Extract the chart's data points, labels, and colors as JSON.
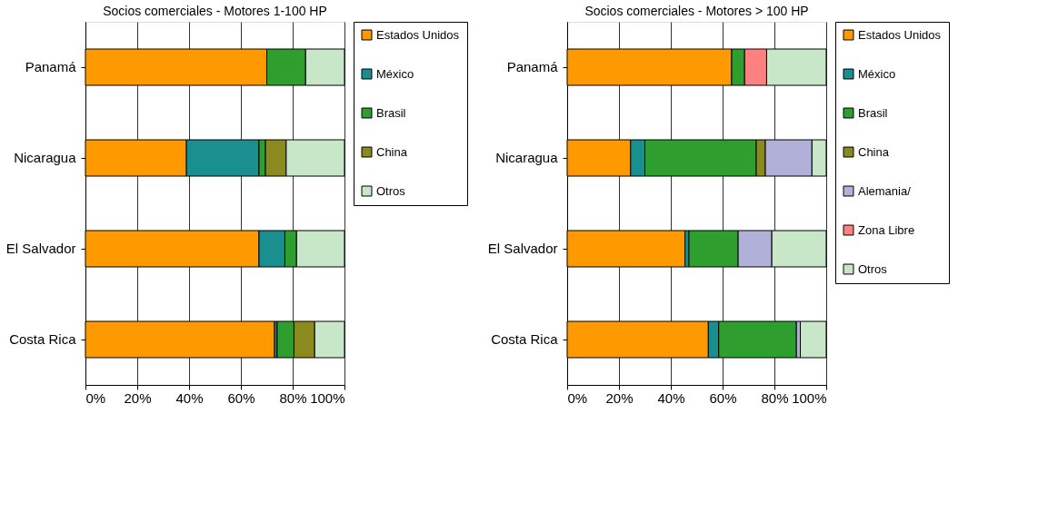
{
  "chart_data": [
    {
      "type": "bar",
      "orientation": "horizontal",
      "stacked": true,
      "title": "Socios comerciales - Motores 1-100 HP",
      "categories": [
        "Panamá",
        "Nicaragua",
        "El Salvador",
        "Costa Rica"
      ],
      "series": [
        {
          "name": "Estados Unidos",
          "color": "#ff9900",
          "values": [
            70,
            39,
            67,
            73
          ]
        },
        {
          "name": "México",
          "color": "#1a8f8f",
          "values": [
            0,
            28,
            10,
            1
          ]
        },
        {
          "name": "Brasil",
          "color": "#2e9e2e",
          "values": [
            15,
            2.5,
            4.5,
            6.5
          ]
        },
        {
          "name": "China",
          "color": "#8a8a1e",
          "values": [
            0,
            8,
            0,
            8
          ]
        },
        {
          "name": "Otros",
          "color": "#c8e6c8",
          "values": [
            15,
            22.5,
            18.5,
            11.5
          ]
        }
      ],
      "xlim": [
        0,
        100
      ],
      "xticks": [
        {
          "value": 0,
          "label": "0%"
        },
        {
          "value": 20,
          "label": "20%"
        },
        {
          "value": 40,
          "label": "40%"
        },
        {
          "value": 60,
          "label": "60%"
        },
        {
          "value": 80,
          "label": "80%"
        },
        {
          "value": 100,
          "label": "100%"
        }
      ],
      "grid": "x",
      "legend": "right"
    },
    {
      "type": "bar",
      "orientation": "horizontal",
      "stacked": true,
      "title": "Socios comerciales - Motores > 100 HP",
      "categories": [
        "Panamá",
        "Nicaragua",
        "El Salvador",
        "Costa Rica"
      ],
      "series": [
        {
          "name": "Estados Unidos",
          "color": "#ff9900",
          "values": [
            63.5,
            24.5,
            45.5,
            54.5
          ]
        },
        {
          "name": "México",
          "color": "#1a8f8f",
          "values": [
            0,
            5.5,
            1.5,
            4
          ]
        },
        {
          "name": "Brasil",
          "color": "#2e9e2e",
          "values": [
            5,
            43,
            19,
            30
          ]
        },
        {
          "name": "China",
          "color": "#8a8a1e",
          "values": [
            0,
            3.5,
            0,
            null
          ]
        },
        {
          "name": "Alemania/",
          "color": "#b0b0d8",
          "values": [
            0,
            18,
            13,
            1.5
          ]
        },
        {
          "name": "Zona Libre",
          "color": "#ff8080",
          "values": [
            8.5,
            0,
            0,
            0
          ]
        },
        {
          "name": "Otros",
          "color": "#c8e6c8",
          "values": [
            23,
            5.5,
            21,
            10
          ]
        }
      ],
      "xlim": [
        0,
        100
      ],
      "xticks": [
        {
          "value": 0,
          "label": "0%"
        },
        {
          "value": 20,
          "label": "20%"
        },
        {
          "value": 40,
          "label": "40%"
        },
        {
          "value": 60,
          "label": "60%"
        },
        {
          "value": 80,
          "label": "80%"
        },
        {
          "value": 100,
          "label": "100%"
        }
      ],
      "grid": "x",
      "legend": "right"
    }
  ]
}
